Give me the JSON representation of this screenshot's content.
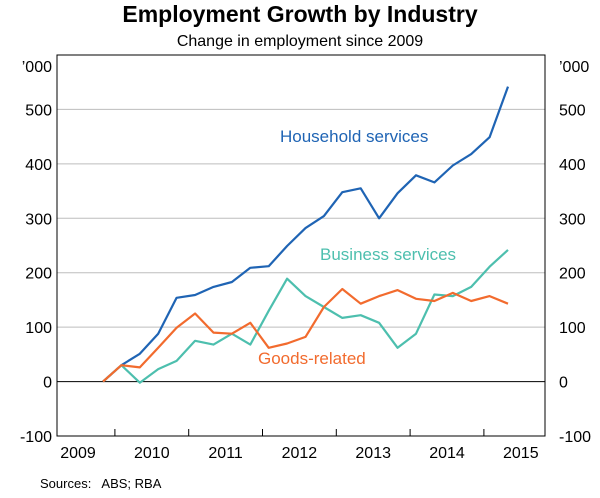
{
  "chart_data": {
    "type": "line",
    "title": "Employment Growth by Industry",
    "subtitle": "Change in employment since 2009",
    "ylabel_left": "’000",
    "ylabel_right": "’000",
    "ylim": [
      -100,
      600
    ],
    "yticks": [
      -100,
      0,
      100,
      200,
      300,
      400,
      500
    ],
    "xtick_labels": [
      "2009",
      "2010",
      "2011",
      "2012",
      "2013",
      "2014",
      "2015"
    ],
    "grid": true,
    "source": "Sources:   ABS; RBA",
    "x": [
      "2009 Q3",
      "2009 Q4",
      "2010 Q1",
      "2010 Q2",
      "2010 Q3",
      "2010 Q4",
      "2011 Q1",
      "2011 Q2",
      "2011 Q3",
      "2011 Q4",
      "2012 Q1",
      "2012 Q2",
      "2012 Q3",
      "2012 Q4",
      "2013 Q1",
      "2013 Q2",
      "2013 Q3",
      "2013 Q4",
      "2014 Q1",
      "2014 Q2",
      "2014 Q3",
      "2014 Q4",
      "2015 Q1"
    ],
    "series": [
      {
        "name": "Household services",
        "color": "#1f64b4",
        "values": [
          0,
          30,
          51,
          88,
          154,
          159,
          174,
          183,
          209,
          212,
          249,
          282,
          304,
          348,
          355,
          300,
          346,
          379,
          366,
          397,
          418,
          449,
          542
        ]
      },
      {
        "name": "Business services",
        "color": "#4dbfae",
        "values": [
          0,
          30,
          -2,
          23,
          38,
          75,
          68,
          88,
          68,
          130,
          189,
          157,
          137,
          117,
          122,
          108,
          62,
          88,
          160,
          157,
          174,
          211,
          242
        ]
      },
      {
        "name": "Goods-related",
        "color": "#f26b2e",
        "values": [
          0,
          30,
          26,
          62,
          99,
          125,
          90,
          88,
          108,
          62,
          70,
          82,
          137,
          170,
          143,
          157,
          168,
          152,
          148,
          163,
          148,
          157,
          143
        ]
      }
    ]
  }
}
